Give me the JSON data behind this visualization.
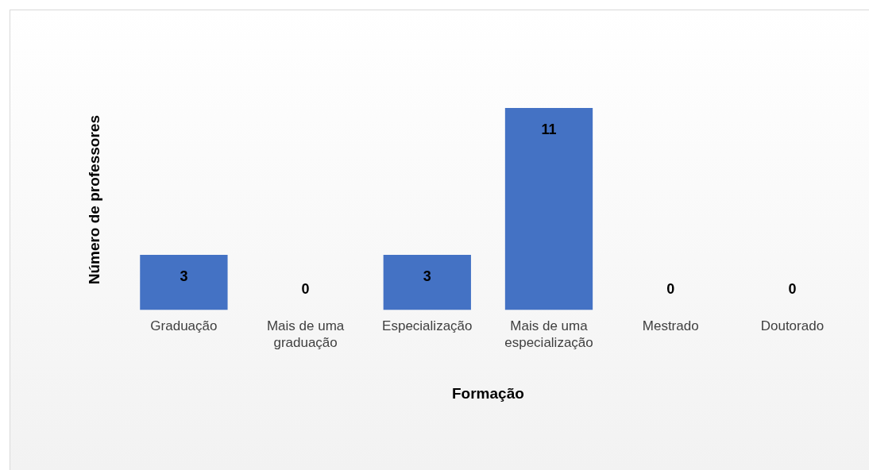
{
  "chart_data": {
    "type": "bar",
    "xlabel": "Formação",
    "ylabel": "Número de professores",
    "categories": [
      "Graduação",
      "Mais de uma graduação",
      "Especialização",
      "Mais de uma especialização",
      "Mestrado",
      "Doutorado"
    ],
    "values": [
      3,
      0,
      3,
      11,
      0,
      0
    ],
    "color": "#4472c4",
    "data_labels": true
  }
}
